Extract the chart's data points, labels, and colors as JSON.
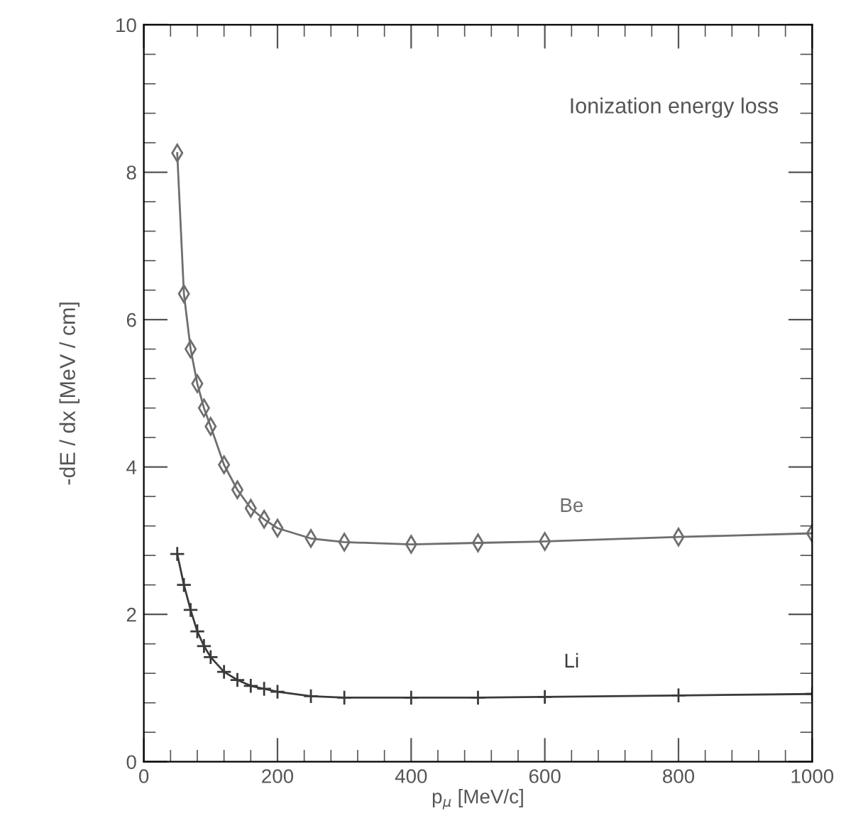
{
  "chart_data": {
    "type": "line",
    "xlabel": "p$_{μ}$ [MeV/c]",
    "ylabel": "-dE / dx [MeV / cm]",
    "annotations": [
      "Ionization energy loss"
    ],
    "x": [
      50,
      60,
      70,
      80,
      90,
      100,
      120,
      140,
      160,
      180,
      200,
      250,
      300,
      400,
      500,
      600,
      800,
      1000
    ],
    "xlim": [
      0,
      1000
    ],
    "xticks": [
      0,
      200,
      400,
      600,
      800,
      1000
    ],
    "ylim": [
      0,
      10
    ],
    "yticks": [
      0,
      2,
      4,
      6,
      8,
      10
    ],
    "grid": false,
    "legend": false,
    "series": [
      {
        "name": "Be",
        "color": "#6e6e6e",
        "marker": "diamond",
        "values": [
          8.26,
          6.35,
          5.6,
          5.13,
          4.8,
          4.55,
          4.03,
          3.69,
          3.44,
          3.29,
          3.17,
          3.03,
          2.98,
          2.95,
          2.97,
          2.99,
          3.05,
          3.1
        ]
      },
      {
        "name": "Li",
        "color": "#3a3a3a",
        "marker": "cross",
        "values": [
          2.82,
          2.4,
          2.06,
          1.77,
          1.57,
          1.42,
          1.22,
          1.11,
          1.03,
          0.99,
          0.95,
          0.89,
          0.87,
          0.87,
          0.87,
          0.88,
          0.9,
          0.92
        ]
      }
    ]
  }
}
